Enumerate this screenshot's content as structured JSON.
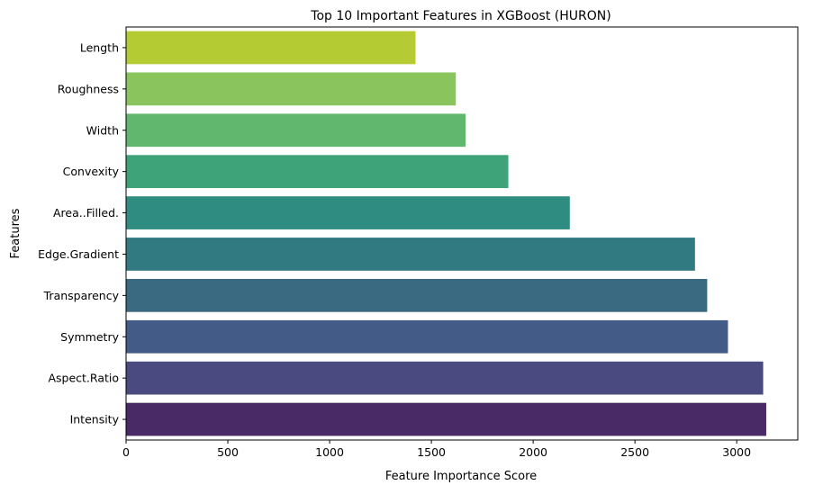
{
  "chart_data": {
    "type": "bar",
    "orientation": "horizontal",
    "title": "Top 10 Important Features in XGBoost (HURON)",
    "xlabel": "Feature Importance Score",
    "ylabel": "Features",
    "categories": [
      "Length",
      "Roughness",
      "Width",
      "Convexity",
      "Area..Filled.",
      "Edge.Gradient",
      "Transparency",
      "Symmetry",
      "Aspect.Ratio",
      "Intensity"
    ],
    "values": [
      1422,
      1620,
      1668,
      1878,
      2180,
      2795,
      2855,
      2957,
      3130,
      3145
    ],
    "colors": [
      "#b5cb33",
      "#89c45c",
      "#62b76e",
      "#3fa37a",
      "#2f8c80",
      "#317a81",
      "#396a82",
      "#435b87",
      "#4a4a81",
      "#492a67"
    ],
    "xlim": [
      0,
      3300
    ],
    "xticks": [
      0,
      500,
      1000,
      1500,
      2000,
      2500,
      3000
    ],
    "grid": false,
    "legend": "none"
  }
}
